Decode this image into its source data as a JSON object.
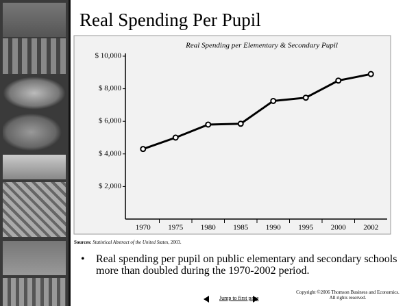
{
  "chart_data": {
    "type": "line",
    "slide_title": "Real Spending Per Pupil",
    "title": "Real Spending per Elementary & Secondary Pupil",
    "categories": [
      "1970",
      "1975",
      "1980",
      "1985",
      "1990",
      "1995",
      "2000",
      "2002"
    ],
    "values": [
      4300,
      5000,
      5800,
      5850,
      7250,
      7450,
      8500,
      8900
    ],
    "color": "#000000",
    "ylim": [
      0,
      10000
    ],
    "yticks": [
      {
        "value": 2000,
        "label": "$ 2,000"
      },
      {
        "value": 4000,
        "label": "$ 4,000"
      },
      {
        "value": 6000,
        "label": "$ 6,000"
      },
      {
        "value": 8000,
        "label": "$ 8,000"
      },
      {
        "value": 10000,
        "label": "$ 10,000"
      }
    ],
    "grid": false
  },
  "sources": {
    "label": "Sources:",
    "title": "Statistical Abstract of the United States",
    "rest": ", 2003."
  },
  "bullet": "Real spending per pupil on public elementary and secondary schools more than doubled during the 1970-2002 period.",
  "footer": {
    "link": "Jump to first page",
    "copyright": "Copyright ©2006  Thomson Business and Economics. All rights reserved."
  }
}
